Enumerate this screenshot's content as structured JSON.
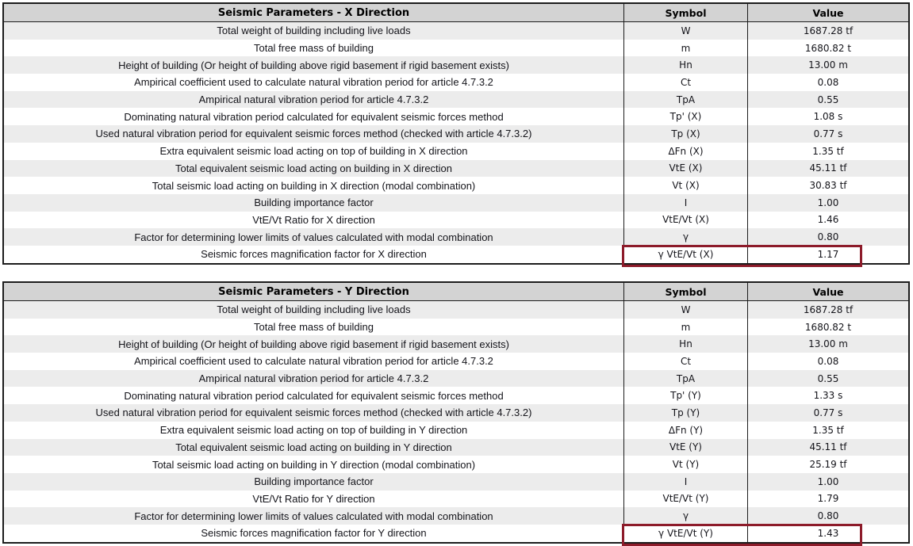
{
  "colors": {
    "header_bg": "#d3d3d3",
    "stripe_bg": "#ececec",
    "border": "#1c1c1c",
    "highlight_box": "#8d1b2a",
    "text": "#14141a"
  },
  "tables": [
    {
      "title": "Seismic Parameters - X Direction",
      "columns": {
        "symbol": "Symbol",
        "value": "Value"
      },
      "rows": [
        {
          "description": "Total weight of building including live loads",
          "symbol": "W",
          "value": "1687.28 tf",
          "highlight": false
        },
        {
          "description": "Total free mass of building",
          "symbol": "m",
          "value": "1680.82 t",
          "highlight": false
        },
        {
          "description": "Height of building (Or height of building above rigid basement if rigid basement exists)",
          "symbol": "Hn",
          "value": "13.00 m",
          "highlight": false
        },
        {
          "description": "Ampirical coefficient used to calculate natural vibration period for article 4.7.3.2",
          "symbol": "Ct",
          "value": "0.08",
          "highlight": false
        },
        {
          "description": "Ampirical natural vibration period for article 4.7.3.2",
          "symbol": "TpA",
          "value": "0.55",
          "highlight": false
        },
        {
          "description": "Dominating natural vibration period calculated for equivalent seismic forces method",
          "symbol": "Tp' (X)",
          "value": "1.08 s",
          "highlight": false
        },
        {
          "description": "Used natural vibration period for equivalent seismic forces method (checked with article 4.7.3.2)",
          "symbol": "Tp (X)",
          "value": "0.77 s",
          "highlight": false
        },
        {
          "description": "Extra equivalent seismic load acting on top of building in X direction",
          "symbol": "ΔFn (X)",
          "value": "1.35 tf",
          "highlight": false
        },
        {
          "description": "Total equivalent seismic load acting on building in X direction",
          "symbol": "VtE (X)",
          "value": "45.11 tf",
          "highlight": false
        },
        {
          "description": "Total seismic load acting on building in X direction (modal combination)",
          "symbol": "Vt (X)",
          "value": "30.83 tf",
          "highlight": false
        },
        {
          "description": "Building importance factor",
          "symbol": "I",
          "value": "1.00",
          "highlight": false
        },
        {
          "description": "VtE/Vt Ratio for X direction",
          "symbol": "VtE/Vt (X)",
          "value": "1.46",
          "highlight": false
        },
        {
          "description": "Factor for determining lower limits of values calculated with modal combination",
          "symbol": "γ",
          "value": "0.80",
          "highlight": false
        },
        {
          "description": "Seismic forces magnification factor for X direction",
          "symbol": "γ VtE/Vt (X)",
          "value": "1.17",
          "highlight": true
        }
      ]
    },
    {
      "title": "Seismic Parameters - Y Direction",
      "columns": {
        "symbol": "Symbol",
        "value": "Value"
      },
      "rows": [
        {
          "description": "Total weight of building including live loads",
          "symbol": "W",
          "value": "1687.28 tf",
          "highlight": false
        },
        {
          "description": "Total free mass of building",
          "symbol": "m",
          "value": "1680.82 t",
          "highlight": false
        },
        {
          "description": "Height of building (Or height of building above rigid basement if rigid basement exists)",
          "symbol": "Hn",
          "value": "13.00 m",
          "highlight": false
        },
        {
          "description": "Ampirical coefficient used to calculate natural vibration period for article 4.7.3.2",
          "symbol": "Ct",
          "value": "0.08",
          "highlight": false
        },
        {
          "description": "Ampirical natural vibration period for article 4.7.3.2",
          "symbol": "TpA",
          "value": "0.55",
          "highlight": false
        },
        {
          "description": "Dominating natural vibration period calculated for equivalent seismic forces method",
          "symbol": "Tp' (Y)",
          "value": "1.33 s",
          "highlight": false
        },
        {
          "description": "Used natural vibration period for equivalent seismic forces method (checked with article 4.7.3.2)",
          "symbol": "Tp (Y)",
          "value": "0.77 s",
          "highlight": false
        },
        {
          "description": "Extra equivalent seismic load acting on top of building in Y direction",
          "symbol": "ΔFn (Y)",
          "value": "1.35 tf",
          "highlight": false
        },
        {
          "description": "Total equivalent seismic load acting on building in Y direction",
          "symbol": "VtE (Y)",
          "value": "45.11 tf",
          "highlight": false
        },
        {
          "description": "Total seismic load acting on building in Y direction (modal combination)",
          "symbol": "Vt (Y)",
          "value": "25.19 tf",
          "highlight": false
        },
        {
          "description": "Building importance factor",
          "symbol": "I",
          "value": "1.00",
          "highlight": false
        },
        {
          "description": "VtE/Vt Ratio for Y direction",
          "symbol": "VtE/Vt (Y)",
          "value": "1.79",
          "highlight": false
        },
        {
          "description": "Factor for determining lower limits of values calculated with modal combination",
          "symbol": "γ",
          "value": "0.80",
          "highlight": false
        },
        {
          "description": "Seismic forces magnification factor for Y direction",
          "symbol": "γ VtE/Vt (Y)",
          "value": "1.43",
          "highlight": true
        }
      ]
    }
  ]
}
